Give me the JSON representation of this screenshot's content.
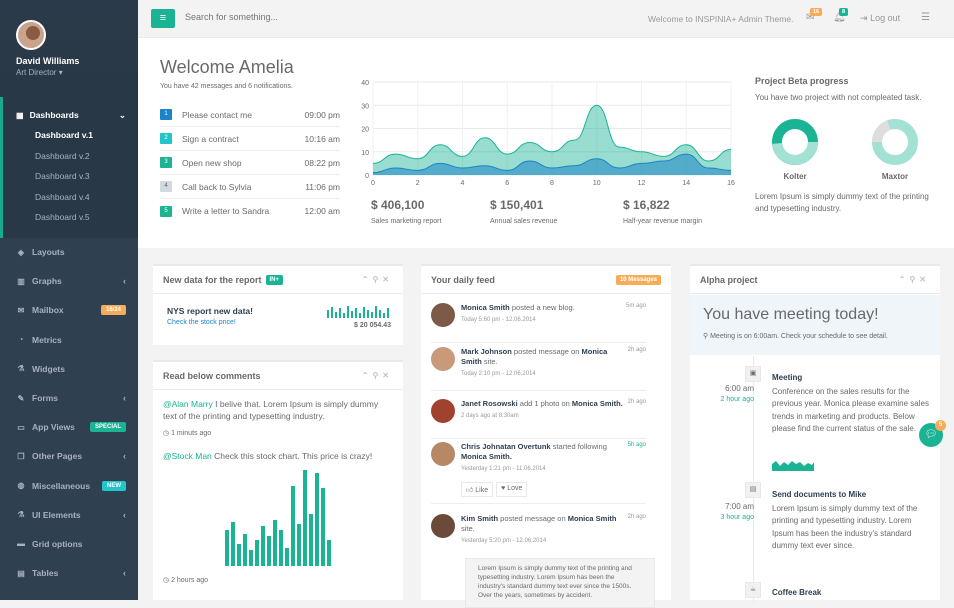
{
  "user": {
    "name": "David Williams",
    "role": "Art Director"
  },
  "nav": {
    "dashboards": {
      "label": "Dashboards",
      "subs": [
        "Dashboard v.1",
        "Dashboard v.2",
        "Dashboard v.3",
        "Dashboard v.4",
        "Dashboard v.5"
      ]
    },
    "items": [
      {
        "label": "Layouts",
        "icon": "diamond-icon"
      },
      {
        "label": "Graphs",
        "icon": "bar-chart-icon"
      },
      {
        "label": "Mailbox",
        "icon": "envelope-icon",
        "badge": "16/24"
      },
      {
        "label": "Metrics",
        "icon": "pie-chart-icon"
      },
      {
        "label": "Widgets",
        "icon": "flask-icon"
      },
      {
        "label": "Forms",
        "icon": "edit-icon"
      },
      {
        "label": "App Views",
        "icon": "desktop-icon",
        "badge": "SPECIAL"
      },
      {
        "label": "Other Pages",
        "icon": "files-icon"
      },
      {
        "label": "Miscellaneous",
        "icon": "globe-icon",
        "badge": "NEW"
      },
      {
        "label": "UI Elements",
        "icon": "flask-icon"
      },
      {
        "label": "Grid options",
        "icon": "laptop-icon"
      },
      {
        "label": "Tables",
        "icon": "table-icon"
      }
    ]
  },
  "topbar": {
    "search_placeholder": "Search for something...",
    "welcome": "Welcome to INSPINIA+ Admin Theme.",
    "mail_count": "16",
    "alert_count": "8",
    "logout": "Log out"
  },
  "hero": {
    "title": "Welcome Amelia",
    "subtitle": "You have 42 messages and 6 notifications.",
    "todos": [
      {
        "n": "1",
        "text": "Please contact me",
        "time": "09:00 pm"
      },
      {
        "n": "2",
        "text": "Sign a contract",
        "time": "10:16 am"
      },
      {
        "n": "3",
        "text": "Open new shop",
        "time": "08:22 pm"
      },
      {
        "n": "4",
        "text": "Call back to Sylvia",
        "time": "11:06 pm"
      },
      {
        "n": "5",
        "text": "Write a letter to Sandra",
        "time": "12:00 am"
      }
    ],
    "stats": [
      {
        "value": "$ 406,100",
        "label": "Sales marketing report"
      },
      {
        "value": "$ 150,401",
        "label": "Annual sales revenue"
      },
      {
        "value": "$ 16,822",
        "label": "Half-year revenue margin"
      }
    ],
    "project": {
      "title": "Project Beta progress",
      "text": "You have two project with not compleated task.",
      "donut1": "Kolter",
      "donut2": "Maxtor",
      "footer": "Lorem Ipsum is simply dummy text of the printing and typesetting industry."
    }
  },
  "chart_data": {
    "type": "area",
    "x": [
      0,
      1,
      2,
      3,
      4,
      5,
      6,
      7,
      8,
      9,
      10,
      11,
      12,
      13,
      14,
      15,
      16
    ],
    "x_ticks": [
      "0",
      "2",
      "4",
      "6",
      "8",
      "10",
      "12",
      "14",
      "16"
    ],
    "y_ticks": [
      "0",
      "10",
      "20",
      "30",
      "40"
    ],
    "ylim": [
      0,
      40
    ],
    "series": [
      {
        "values": [
          5,
          9,
          7,
          13,
          8,
          16,
          9,
          14,
          10,
          15,
          30,
          12,
          10,
          8,
          13,
          6,
          11
        ],
        "color": "#1ab394"
      },
      {
        "values": [
          1,
          3,
          2,
          5,
          3,
          4,
          2,
          6,
          3,
          4,
          7,
          3,
          5,
          6,
          9,
          3,
          2
        ],
        "color": "#1c84c6"
      }
    ]
  },
  "panels": {
    "report": {
      "title": "New data for the report",
      "label": "IN+",
      "name": "NYS report new data!",
      "link": "Check the stock price!",
      "amount": "$ 20 054.43"
    },
    "comments": {
      "title": "Read below comments",
      "c1_user": "@Alan Marry",
      "c1_text": " I belive that. Lorem Ipsum is simply dummy text of the printing and typesetting industry.",
      "c1_time": "1 minuts ago",
      "c2_user": "@Stock Man",
      "c2_text": " Check this stock chart. This price is crazy!",
      "c2_time": "2 hours ago"
    },
    "feed": {
      "title": "Your daily feed",
      "badge": "10 Messages",
      "items": [
        {
          "who": "Monica Smith",
          "action": " posted a new blog.",
          "date": "Today 5:60 pm - 12.06.2014",
          "ago": "5m ago"
        },
        {
          "who": "Mark Johnson",
          "action": " posted message on ",
          "target": "Monica Smith",
          "tail": " site.",
          "date": "Today 2:10 pm - 12.06.2014",
          "ago": "2h ago"
        },
        {
          "who": "Janet Rosowski",
          "action": " add 1 photo on ",
          "target": "Monica Smith.",
          "date": "2 days ago at 8:30am",
          "ago": "2h ago"
        },
        {
          "who": "Chris Johnatan Overtunk",
          "action": " started following ",
          "target": "Monica Smith.",
          "date": "Yesterday 1:21 pm - 11.06.2014",
          "ago": "5h ago"
        },
        {
          "who": "Kim Smith",
          "action": " posted message on ",
          "target": "Monica Smith",
          "tail": " site.",
          "date": "Yesterday 5:20 pm - 12.06.2014",
          "ago": "2h ago"
        }
      ],
      "like": "Like",
      "love": "Love",
      "quote": "Lorem Ipsum is simply dummy text of the printing and typesetting industry. Lorem Ipsum has been the industry's standard dummy text ever since the 1500s. Over the years, sometimes by accident."
    },
    "alpha": {
      "title": "Alpha project",
      "meeting_title": "You have meeting today!",
      "meeting_sub": "Meeting is on 6:00am. Check your schedule to see detail.",
      "timeline": [
        {
          "time": "6:00 am",
          "ago": "2 hour ago",
          "title": "Meeting",
          "text": "Conference on the sales results for the previous year. Monica please examine sales trends in marketing and products. Below please find the current status of the sale."
        },
        {
          "time": "7:00 am",
          "ago": "3 hour ago",
          "title": "Send documents to Mike",
          "text": "Lorem Ipsum is simply dummy text of the printing and typesetting industry. Lorem Ipsum has been the industry's standard dummy text ever since."
        },
        {
          "title": "Coffee Break"
        }
      ],
      "chat_count": "5"
    }
  },
  "colors": {
    "primary": "#1ab394",
    "sidebar": "#2f4050",
    "blue": "#1c84c6",
    "warning": "#f8ac59"
  }
}
